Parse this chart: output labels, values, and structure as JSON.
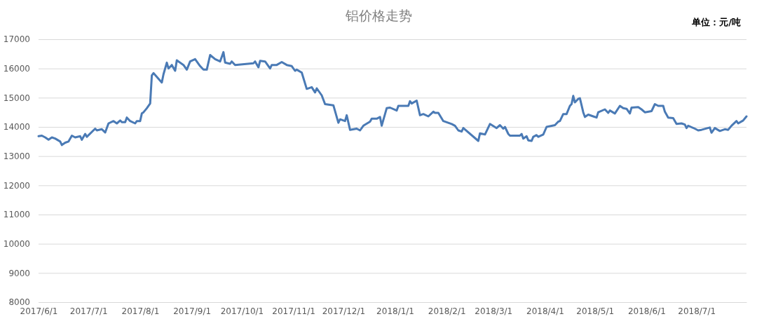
{
  "chart_data": {
    "type": "line",
    "title": "铝价格走势",
    "annotations": [
      "单位：元/吨"
    ],
    "x": [
      "2017-06-01",
      "2017-06-03",
      "2017-06-05",
      "2017-06-07",
      "2017-06-09",
      "2017-06-11",
      "2017-06-14",
      "2017-06-15",
      "2017-06-17",
      "2017-06-19",
      "2017-06-21",
      "2017-06-23",
      "2017-06-26",
      "2017-06-27",
      "2017-06-29",
      "2017-06-30",
      "2017-07-05",
      "2017-07-06",
      "2017-07-09",
      "2017-07-11",
      "2017-07-13",
      "2017-07-16",
      "2017-07-18",
      "2017-07-20",
      "2017-07-21",
      "2017-07-23",
      "2017-07-24",
      "2017-07-26",
      "2017-07-29",
      "2017-07-30",
      "2017-08-01",
      "2017-08-02",
      "2017-08-03",
      "2017-08-05",
      "2017-08-07",
      "2017-08-08",
      "2017-08-09",
      "2017-08-14",
      "2017-08-15",
      "2017-08-17",
      "2017-08-18",
      "2017-08-20",
      "2017-08-22",
      "2017-08-23",
      "2017-08-27",
      "2017-08-29",
      "2017-08-31",
      "2017-09-03",
      "2017-09-06",
      "2017-09-08",
      "2017-09-10",
      "2017-09-12",
      "2017-09-15",
      "2017-09-18",
      "2017-09-20",
      "2017-09-21",
      "2017-09-24",
      "2017-09-25",
      "2017-09-27",
      "2017-10-08",
      "2017-10-09",
      "2017-10-11",
      "2017-10-12",
      "2017-10-15",
      "2017-10-18",
      "2017-10-19",
      "2017-10-22",
      "2017-10-25",
      "2017-10-28",
      "2017-10-31",
      "2017-11-02",
      "2017-11-03",
      "2017-11-06",
      "2017-11-09",
      "2017-11-12",
      "2017-11-14",
      "2017-11-15",
      "2017-11-18",
      "2017-11-20",
      "2017-11-25",
      "2017-11-28",
      "2017-11-29",
      "2017-12-02",
      "2017-12-03",
      "2017-12-05",
      "2017-12-09",
      "2017-12-11",
      "2017-12-13",
      "2017-12-17",
      "2017-12-18",
      "2017-12-21",
      "2017-12-23",
      "2017-12-24",
      "2017-12-27",
      "2017-12-29",
      "2018-01-02",
      "2018-01-03",
      "2018-01-09",
      "2018-01-10",
      "2018-01-11",
      "2018-01-14",
      "2018-01-16",
      "2018-01-18",
      "2018-01-21",
      "2018-01-24",
      "2018-01-25",
      "2018-01-27",
      "2018-01-30",
      "2018-02-04",
      "2018-02-06",
      "2018-02-08",
      "2018-02-10",
      "2018-02-11",
      "2018-02-20",
      "2018-02-21",
      "2018-02-24",
      "2018-02-27",
      "2018-03-03",
      "2018-03-05",
      "2018-03-07",
      "2018-03-08",
      "2018-03-10",
      "2018-03-11",
      "2018-03-17",
      "2018-03-18",
      "2018-03-19",
      "2018-03-21",
      "2018-03-22",
      "2018-03-24",
      "2018-03-25",
      "2018-03-27",
      "2018-03-28",
      "2018-03-31",
      "2018-04-02",
      "2018-04-07",
      "2018-04-09",
      "2018-04-10",
      "2018-04-12",
      "2018-04-14",
      "2018-04-16",
      "2018-04-17",
      "2018-04-18",
      "2018-04-19",
      "2018-04-21",
      "2018-04-22",
      "2018-04-24",
      "2018-04-25",
      "2018-04-27",
      "2018-04-30",
      "2018-05-02",
      "2018-05-03",
      "2018-05-07",
      "2018-05-09",
      "2018-05-10",
      "2018-05-13",
      "2018-05-16",
      "2018-05-18",
      "2018-05-20",
      "2018-05-22",
      "2018-05-23",
      "2018-05-27",
      "2018-05-29",
      "2018-05-31",
      "2018-06-04",
      "2018-06-06",
      "2018-06-08",
      "2018-06-11",
      "2018-06-12",
      "2018-06-14",
      "2018-06-17",
      "2018-06-19",
      "2018-06-22",
      "2018-06-24",
      "2018-06-25",
      "2018-06-26",
      "2018-06-30",
      "2018-07-02",
      "2018-07-04",
      "2018-07-09",
      "2018-07-10",
      "2018-07-12",
      "2018-07-15",
      "2018-07-18",
      "2018-07-20",
      "2018-07-22",
      "2018-07-25",
      "2018-07-26",
      "2018-07-29",
      "2018-07-31"
    ],
    "series": [
      {
        "color": "#4a7ab5",
        "values": [
          13680,
          13700,
          13640,
          13560,
          13640,
          13600,
          13500,
          13380,
          13460,
          13500,
          13700,
          13640,
          13680,
          13560,
          13760,
          13660,
          13940,
          13880,
          13920,
          13810,
          14120,
          14200,
          14120,
          14220,
          14160,
          14160,
          14320,
          14200,
          14120,
          14200,
          14200,
          14460,
          14500,
          14640,
          14800,
          15760,
          15840,
          15520,
          15800,
          16200,
          16000,
          16120,
          15920,
          16280,
          16120,
          15960,
          16240,
          16320,
          16080,
          15960,
          15960,
          16460,
          16320,
          16240,
          16560,
          16200,
          16160,
          16240,
          16120,
          16180,
          16240,
          16040,
          16260,
          16240,
          16000,
          16120,
          16120,
          16220,
          16120,
          16080,
          15920,
          15960,
          15860,
          15300,
          15360,
          15180,
          15320,
          15080,
          14780,
          14740,
          14140,
          14260,
          14200,
          14400,
          13900,
          13940,
          13880,
          14040,
          14180,
          14280,
          14280,
          14340,
          14040,
          14640,
          14660,
          14560,
          14720,
          14720,
          14880,
          14800,
          14900,
          14400,
          14440,
          14360,
          14520,
          14480,
          14480,
          14200,
          14100,
          14040,
          13880,
          13840,
          13960,
          13520,
          13780,
          13740,
          14100,
          13960,
          14060,
          13940,
          14000,
          13760,
          13700,
          13700,
          13760,
          13600,
          13680,
          13540,
          13520,
          13660,
          13720,
          13660,
          13740,
          14000,
          14060,
          14180,
          14200,
          14440,
          14440,
          14720,
          14780,
          15060,
          14840,
          14960,
          14980,
          14500,
          14340,
          14420,
          14360,
          14320,
          14500,
          14600,
          14480,
          14560,
          14460,
          14720,
          14640,
          14620,
          14460,
          14660,
          14680,
          14600,
          14500,
          14540,
          14780,
          14720,
          14720,
          14520,
          14320,
          14300,
          14100,
          14120,
          14080,
          13960,
          14040,
          13940,
          13880,
          13900,
          13980,
          13800,
          13960,
          13860,
          13920,
          13900,
          14040,
          14200,
          14120,
          14220,
          14360
        ]
      }
    ],
    "xlim": [
      "2017-06-01",
      "2018-07-31"
    ],
    "xticks": [
      {
        "value": "2017-06-01",
        "label": "2017/6/1"
      },
      {
        "value": "2017-07-01",
        "label": "2017/7/1"
      },
      {
        "value": "2017-08-01",
        "label": "2017/8/1"
      },
      {
        "value": "2017-09-01",
        "label": "2017/9/1"
      },
      {
        "value": "2017-10-01",
        "label": "2017/10/1"
      },
      {
        "value": "2017-11-01",
        "label": "2017/11/1"
      },
      {
        "value": "2017-12-01",
        "label": "2017/12/1"
      },
      {
        "value": "2018-01-01",
        "label": "2018/1/1"
      },
      {
        "value": "2018-02-01",
        "label": "2018/2/1"
      },
      {
        "value": "2018-03-01",
        "label": "2018/3/1"
      },
      {
        "value": "2018-04-01",
        "label": "2018/4/1"
      },
      {
        "value": "2018-05-01",
        "label": "2018/5/1"
      },
      {
        "value": "2018-06-01",
        "label": "2018/6/1"
      },
      {
        "value": "2018-07-01",
        "label": "2018/7/1"
      }
    ],
    "ylim": [
      8000,
      17000
    ],
    "yticks": [
      8000,
      9000,
      10000,
      11000,
      12000,
      13000,
      14000,
      15000,
      16000,
      17000
    ],
    "grid": "y",
    "line_style": "solid",
    "marker": "none"
  }
}
